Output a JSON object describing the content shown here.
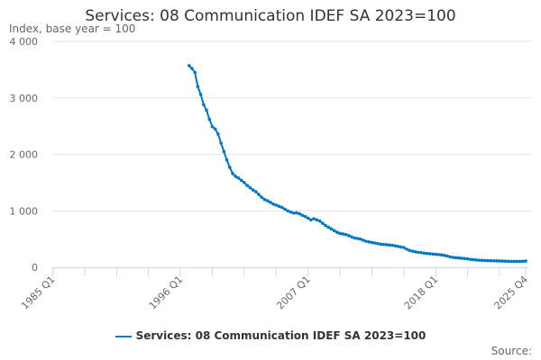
{
  "chart_data": {
    "type": "line",
    "title": "Services: 08 Communication IDEF SA 2023=100",
    "ylabel": "Index, base year = 100",
    "xlabel": "",
    "ylim": [
      0,
      4000
    ],
    "yticks": [
      0,
      1000,
      2000,
      3000,
      4000
    ],
    "ytick_labels": [
      "0",
      "1 000",
      "2 000",
      "3 000",
      "4 000"
    ],
    "x_range": [
      "1985 Q1",
      "2025 Q4"
    ],
    "xtick_labels": [
      "1985 Q1",
      "1996 Q1",
      "2007 Q1",
      "2018 Q1",
      "2025 Q4"
    ],
    "grid": true,
    "legend_position": "bottom",
    "series": [
      {
        "name": "Services: 08 Communication IDEF SA 2023=100",
        "color": "#0077c0",
        "start": "1996 Q4",
        "values": [
          3570,
          3520,
          3450,
          3200,
          3060,
          2880,
          2780,
          2620,
          2490,
          2450,
          2360,
          2200,
          2050,
          1900,
          1770,
          1660,
          1610,
          1580,
          1540,
          1500,
          1450,
          1410,
          1370,
          1340,
          1290,
          1240,
          1200,
          1180,
          1150,
          1120,
          1100,
          1080,
          1060,
          1030,
          1000,
          980,
          960,
          965,
          950,
          920,
          900,
          870,
          840,
          860,
          840,
          820,
          780,
          740,
          710,
          680,
          650,
          620,
          600,
          590,
          580,
          560,
          540,
          520,
          510,
          500,
          480,
          460,
          450,
          440,
          430,
          420,
          410,
          405,
          400,
          395,
          390,
          380,
          370,
          360,
          350,
          320,
          300,
          285,
          275,
          265,
          260,
          250,
          245,
          240,
          235,
          230,
          225,
          220,
          210,
          200,
          185,
          175,
          170,
          165,
          160,
          155,
          150,
          140,
          135,
          130,
          125,
          122,
          120,
          118,
          116,
          115,
          114,
          112,
          110,
          108,
          106,
          105,
          104,
          104,
          105,
          106,
          110
        ]
      }
    ]
  },
  "source_label": "Source:"
}
